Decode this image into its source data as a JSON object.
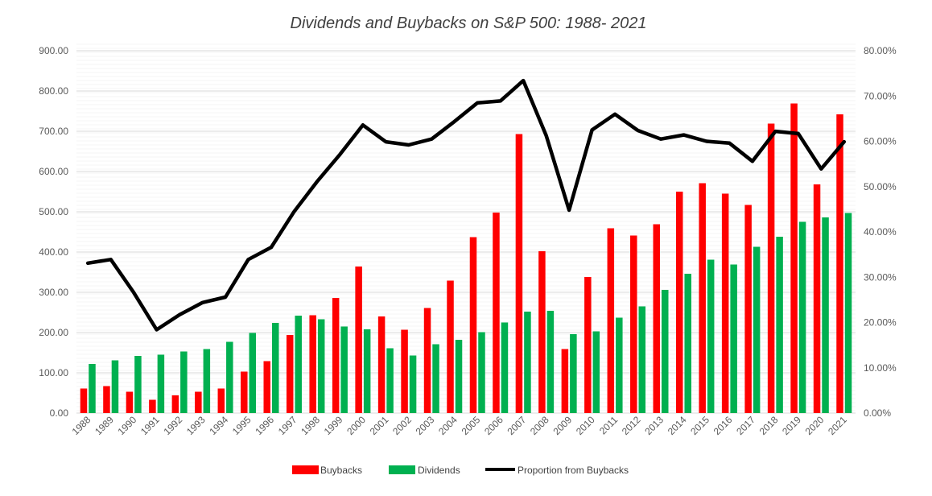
{
  "chart_data": {
    "type": "bar",
    "title": "Dividends and Buybacks on S&P 500: 1988- 2021",
    "categories": [
      "1988",
      "1989",
      "1990",
      "1991",
      "1992",
      "1993",
      "1994",
      "1995",
      "1996",
      "1997",
      "1998",
      "1999",
      "2000",
      "2001",
      "2002",
      "2003",
      "2004",
      "2005",
      "2006",
      "2007",
      "2008",
      "2009",
      "2010",
      "2011",
      "2012",
      "2013",
      "2014",
      "2015",
      "2016",
      "2017",
      "2018",
      "2019",
      "2020",
      "2021"
    ],
    "series": [
      {
        "name": "Buybacks",
        "kind": "bar",
        "axis": "left",
        "color": "#ff0000",
        "values": [
          61,
          67,
          53,
          33,
          44,
          53,
          61,
          103,
          129,
          194,
          243,
          286,
          364,
          240,
          207,
          261,
          329,
          437,
          498,
          693,
          402,
          159,
          338,
          459,
          441,
          469,
          550,
          571,
          545,
          517,
          719,
          769,
          568,
          742
        ]
      },
      {
        "name": "Dividends",
        "kind": "bar",
        "axis": "left",
        "color": "#00b050",
        "values": [
          122,
          131,
          142,
          145,
          153,
          159,
          177,
          199,
          224,
          242,
          233,
          215,
          208,
          161,
          143,
          171,
          182,
          201,
          225,
          252,
          254,
          196,
          203,
          237,
          265,
          306,
          346,
          381,
          369,
          413,
          438,
          475,
          486,
          497
        ]
      },
      {
        "name": "Proportion from Buybacks",
        "kind": "line",
        "axis": "right",
        "color": "#000000",
        "values": [
          0.331,
          0.339,
          0.266,
          0.184,
          0.217,
          0.244,
          0.256,
          0.339,
          0.366,
          0.445,
          0.511,
          0.571,
          0.636,
          0.599,
          0.592,
          0.605,
          0.644,
          0.685,
          0.689,
          0.734,
          0.613,
          0.448,
          0.625,
          0.66,
          0.624,
          0.605,
          0.614,
          0.6,
          0.596,
          0.556,
          0.622,
          0.617,
          0.539,
          0.599
        ]
      }
    ],
    "y_left": {
      "ylim": [
        0,
        900
      ],
      "ticks": [
        "900.00",
        "800.00",
        "700.00",
        "600.00",
        "500.00",
        "400.00",
        "300.00",
        "200.00",
        "100.00",
        "0.00"
      ]
    },
    "y_right": {
      "ylim": [
        0,
        0.8
      ],
      "ticks": [
        "80.00%",
        "70.00%",
        "60.00%",
        "50.00%",
        "40.00%",
        "30.00%",
        "20.00%",
        "10.00%",
        "0.00%"
      ]
    },
    "grid": true,
    "legend_position": "bottom",
    "legend": [
      "Buybacks",
      "Dividends",
      "Proportion from Buybacks"
    ]
  }
}
